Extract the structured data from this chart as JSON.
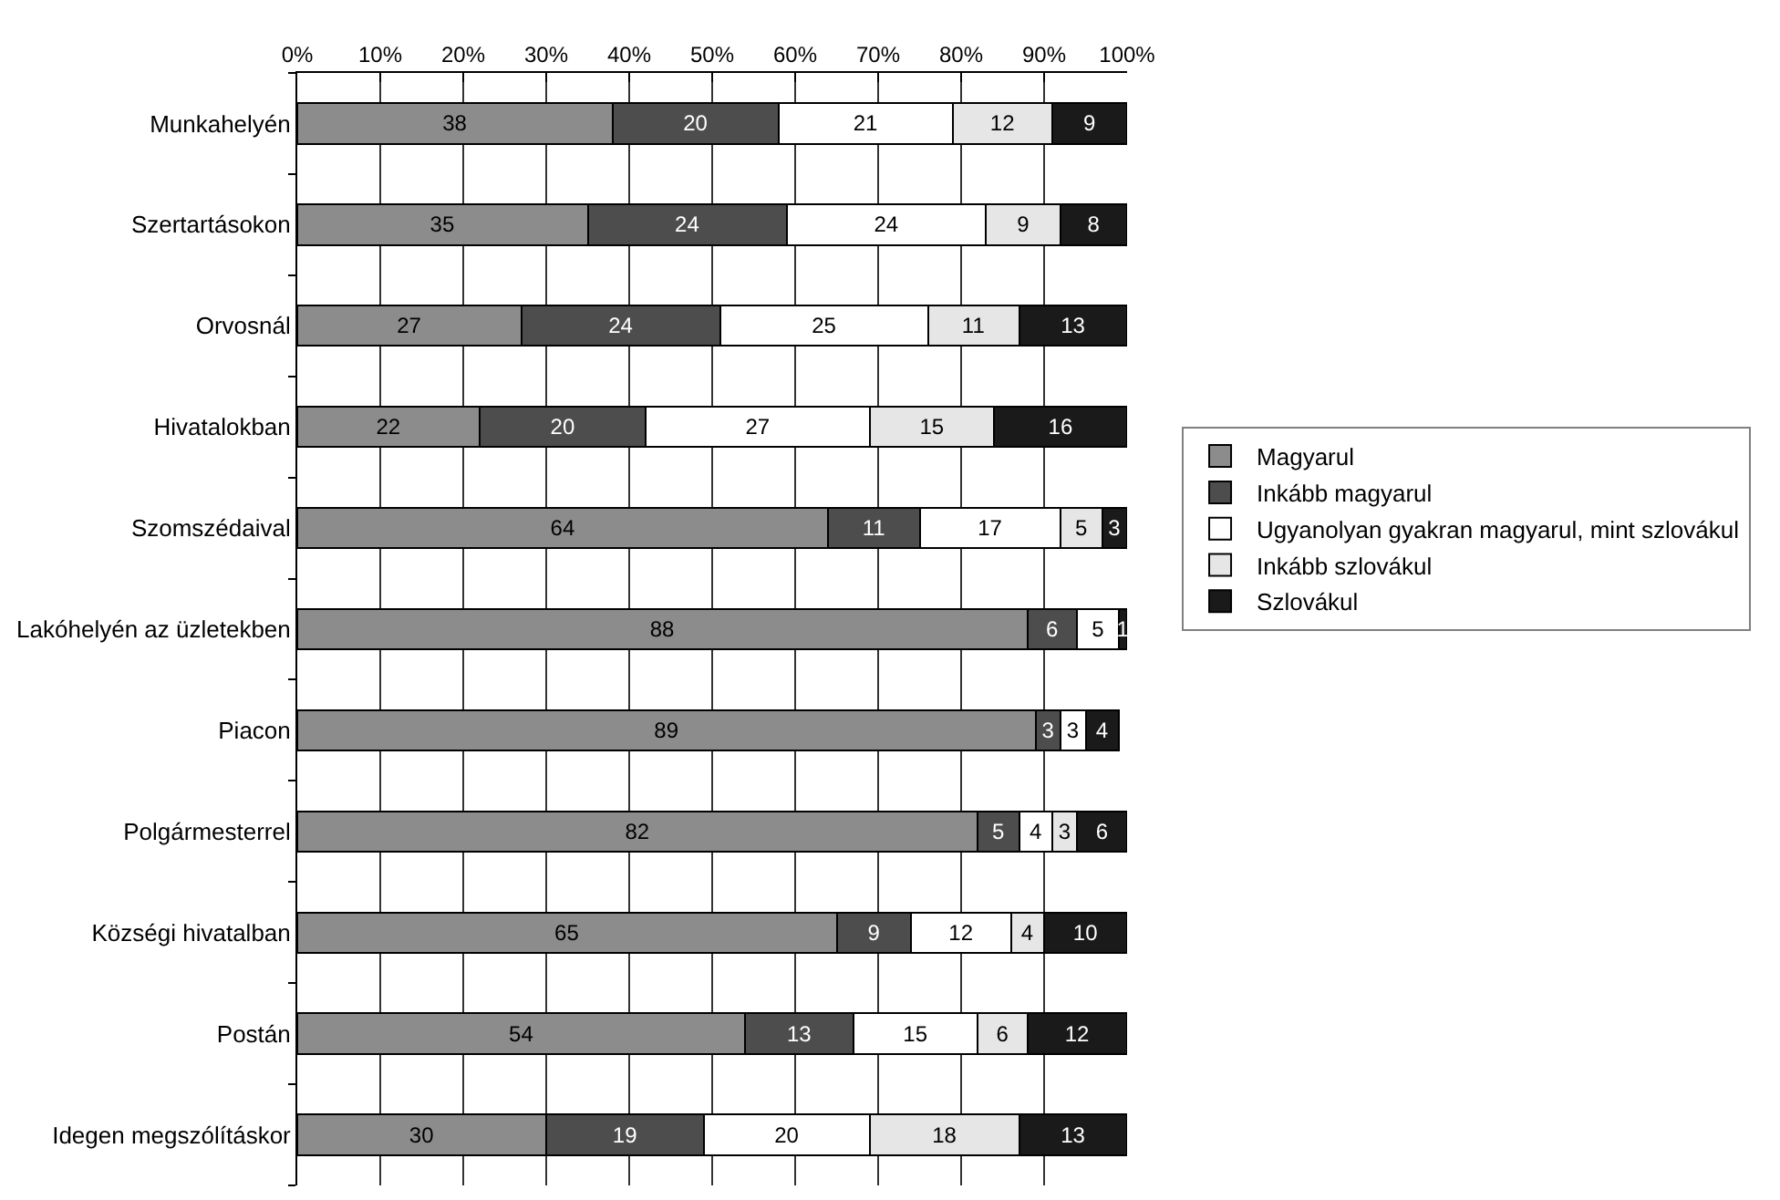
{
  "chart_data": {
    "type": "bar",
    "orientation": "horizontal",
    "stacked": true,
    "categories": [
      "Munkahelyén",
      "Szertartásokon",
      "Orvosnál",
      "Hivatalokban",
      "Szomszédaival",
      "Lakóhelyén az üzletekben",
      "Piacon",
      "Polgármesterrel",
      "Községi hivatalban",
      "Postán",
      "Idegen megszólításkor"
    ],
    "series": [
      {
        "name": "Magyarul",
        "color": "#8c8c8c",
        "values": [
          38,
          35,
          27,
          22,
          64,
          88,
          89,
          82,
          65,
          54,
          30
        ]
      },
      {
        "name": "Inkább magyarul",
        "color": "#4d4d4d",
        "values": [
          20,
          24,
          24,
          20,
          11,
          6,
          3,
          5,
          9,
          13,
          19
        ]
      },
      {
        "name": "Ugyanolyan gyakran magyarul, mint szlovákul",
        "color": "#ffffff",
        "values": [
          21,
          24,
          25,
          27,
          17,
          5,
          3,
          4,
          12,
          15,
          20
        ]
      },
      {
        "name": "Inkább szlovákul",
        "color": "#e6e6e6",
        "values": [
          12,
          9,
          11,
          15,
          5,
          null,
          null,
          3,
          4,
          6,
          18
        ]
      },
      {
        "name": "Szlovákul",
        "color": "#1a1a1a",
        "values": [
          9,
          8,
          13,
          16,
          3,
          1,
          4,
          6,
          10,
          12,
          13
        ]
      }
    ],
    "xlim": [
      0,
      100
    ],
    "xticks": [
      {
        "value": 0,
        "label": "0%"
      },
      {
        "value": 10,
        "label": "10%"
      },
      {
        "value": 20,
        "label": "20%"
      },
      {
        "value": 30,
        "label": "30%"
      },
      {
        "value": 40,
        "label": "40%"
      },
      {
        "value": 50,
        "label": "50%"
      },
      {
        "value": 60,
        "label": "60%"
      },
      {
        "value": 70,
        "label": "70%"
      },
      {
        "value": 80,
        "label": "80%"
      },
      {
        "value": 90,
        "label": "90%"
      },
      {
        "value": 100,
        "label": "100%"
      }
    ],
    "grid": "x",
    "legend": "right",
    "data_labels": true
  }
}
